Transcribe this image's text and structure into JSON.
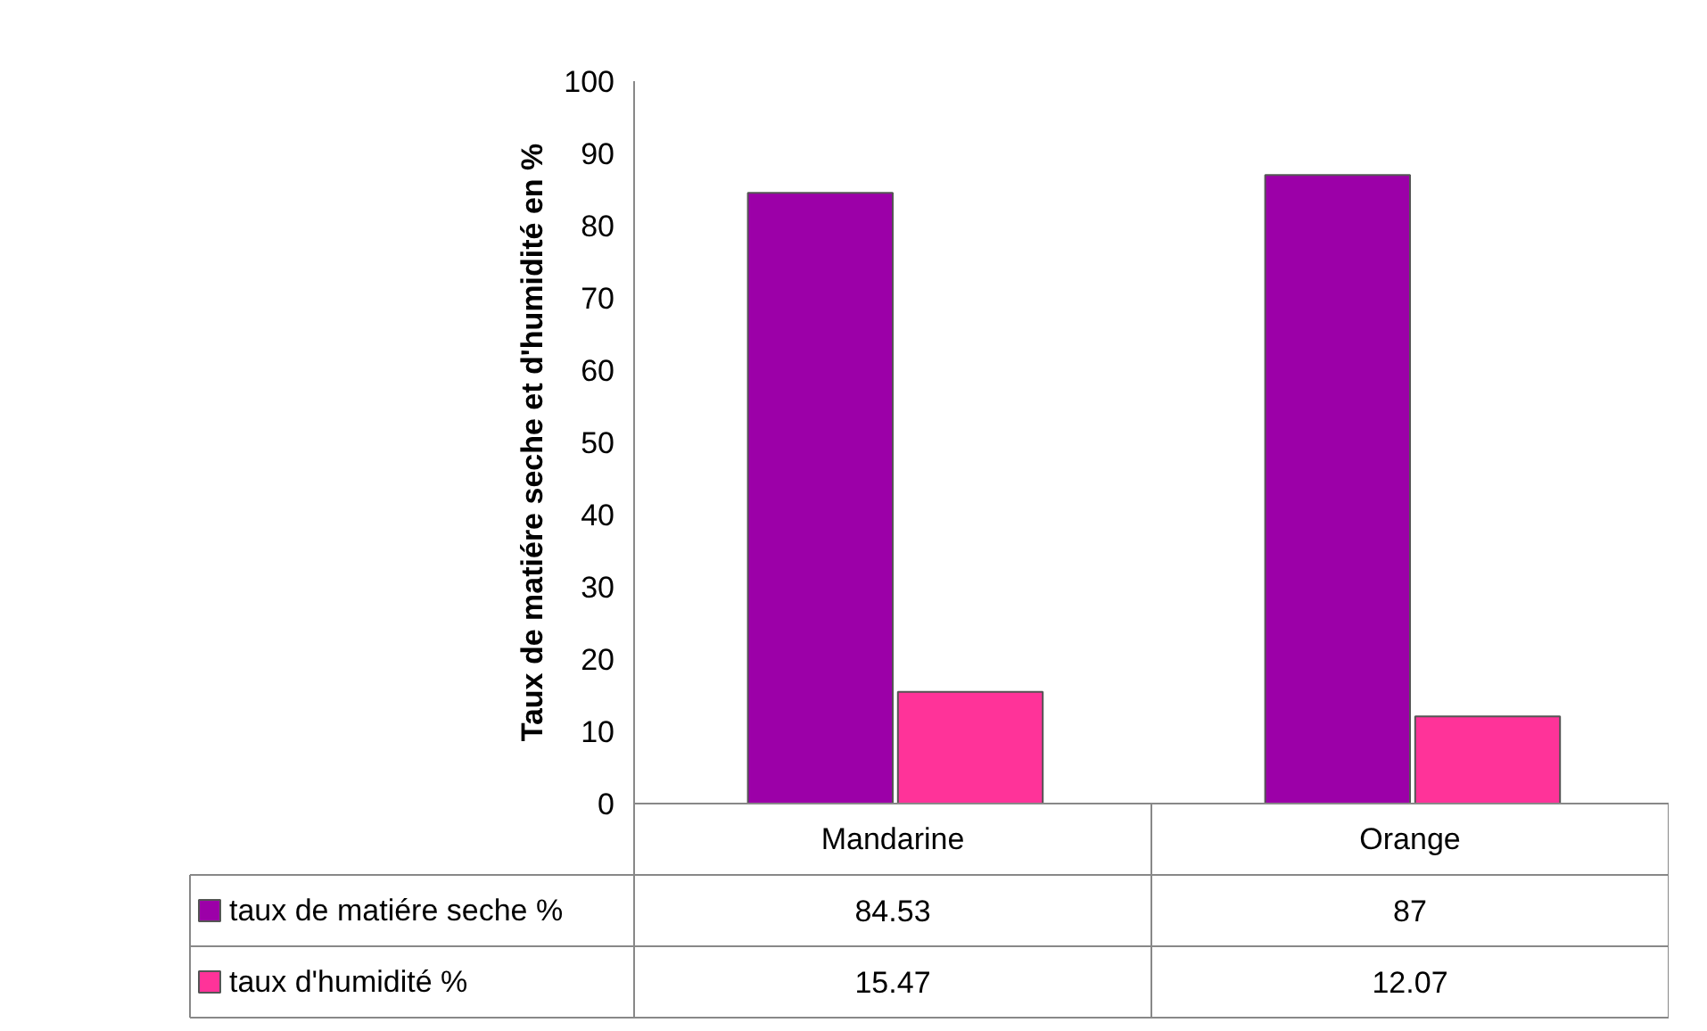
{
  "chart_data": {
    "type": "bar",
    "ylabel": "Taux de matiére seche et d'humidité en %",
    "categories": [
      "Mandarine",
      "Orange"
    ],
    "series": [
      {
        "name": "taux de matiére seche %",
        "color": "#9c00a8",
        "values": [
          84.53,
          87
        ]
      },
      {
        "name": "taux d'humidité %",
        "color": "#ff3399",
        "values": [
          15.47,
          12.07
        ]
      }
    ],
    "ylim": [
      0,
      100
    ],
    "yticks": [
      0,
      10,
      20,
      30,
      40,
      50,
      60,
      70,
      80,
      90,
      100
    ],
    "grid": false,
    "legend": "bottom",
    "data_labels": true
  }
}
